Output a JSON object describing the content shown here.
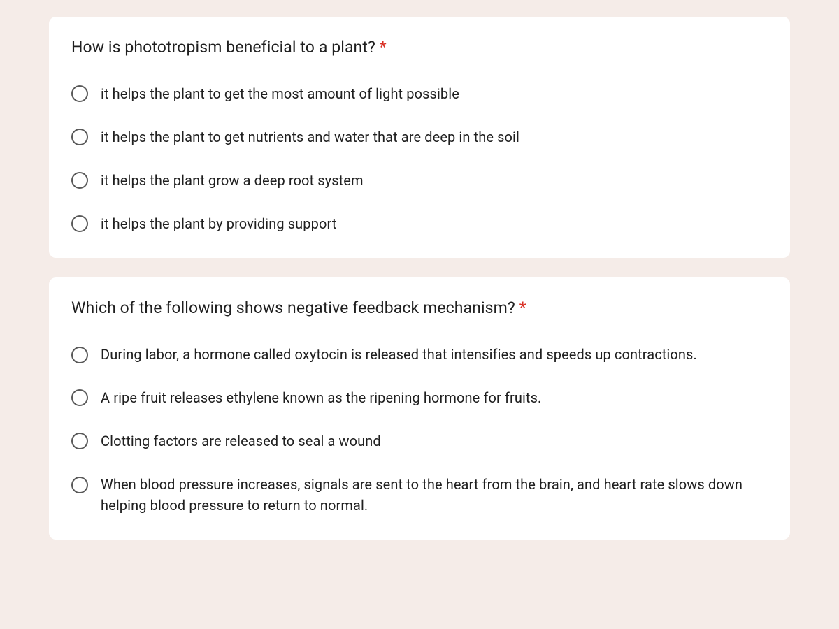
{
  "cards": [
    {
      "question": "How is phototropism beneficial to a plant?",
      "required": true,
      "options": [
        {
          "label": "it helps the plant to get the most amount of light possible",
          "multiline": false
        },
        {
          "label": "it helps the plant to get nutrients and water that are deep in the soil",
          "multiline": false
        },
        {
          "label": "it helps the plant grow a deep root system",
          "multiline": false
        },
        {
          "label": "it helps the plant by providing support",
          "multiline": false
        }
      ]
    },
    {
      "question": "Which of the following shows negative feedback mechanism?",
      "required": true,
      "options": [
        {
          "label": "During labor, a hormone called oxytocin is released that intensifies and speeds up contractions.",
          "multiline": true
        },
        {
          "label": "A ripe fruit releases ethylene known as the ripening hormone for fruits.",
          "multiline": false
        },
        {
          "label": "Clotting factors are released to seal a wound",
          "multiline": false
        },
        {
          "label": "When blood pressure increases, signals are sent to the heart from the brain, and heart rate slows down helping blood pressure to return to normal.",
          "multiline": true
        }
      ]
    }
  ],
  "asterisk": "*",
  "colors": {
    "background": "#f5ece8",
    "card_bg": "#ffffff",
    "text": "#1f1f1f",
    "radio_border": "#595959",
    "required": "#d93025"
  }
}
